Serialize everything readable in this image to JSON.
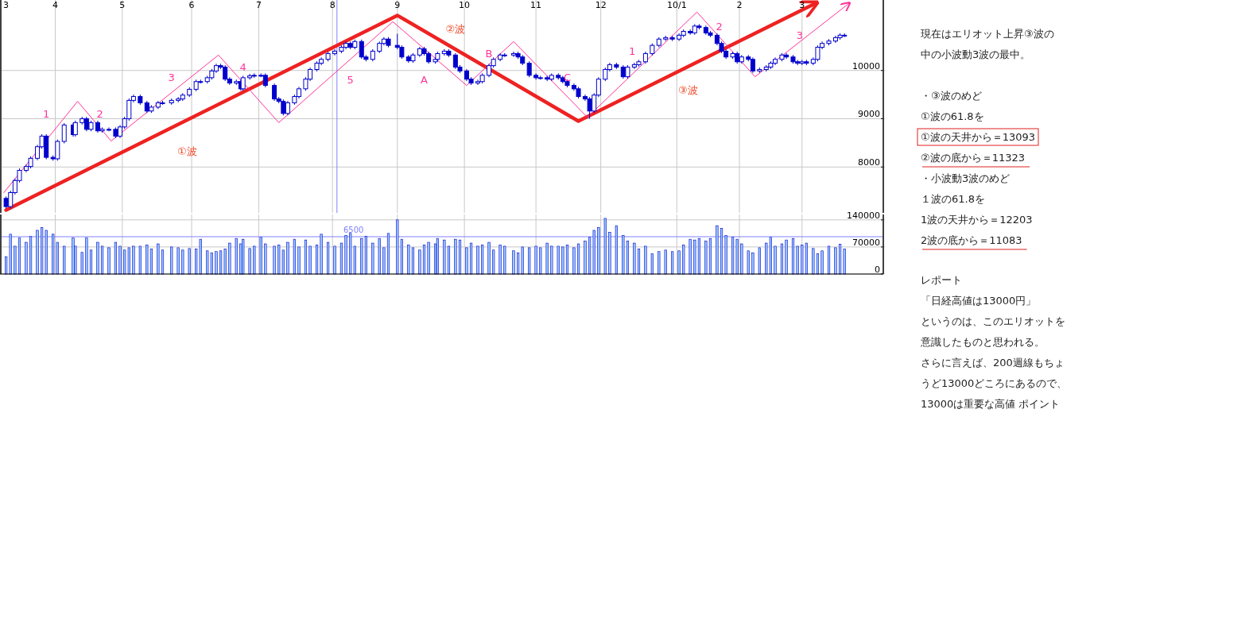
{
  "chart_data": [
    {
      "type": "candlestick",
      "color": "#0000cc",
      "x": [
        "2009-03-10",
        "2009-03-12",
        "2009-03-14",
        "2009-03-16",
        "2009-03-19",
        "2009-03-21",
        "2009-03-24",
        "2009-03-26",
        "2009-03-28",
        "2009-03-31",
        "2009-04-02",
        "2009-04-05",
        "2009-04-09",
        "2009-04-10",
        "2009-04-13",
        "2009-04-15",
        "2009-04-17",
        "2009-04-20",
        "2009-04-22",
        "2009-04-25",
        "2009-04-28",
        "2009-04-30",
        "2009-05-02",
        "2009-05-04",
        "2009-05-06",
        "2009-05-09",
        "2009-05-12",
        "2009-05-14",
        "2009-05-17",
        "2009-05-19",
        "2009-05-23",
        "2009-05-26",
        "2009-05-28",
        "2009-05-31",
        "2009-06-03",
        "2009-06-05",
        "2009-06-08",
        "2009-06-10",
        "2009-06-12",
        "2009-06-14",
        "2009-06-16",
        "2009-06-18",
        "2009-06-21",
        "2009-06-23",
        "2009-06-24",
        "2009-06-27",
        "2009-06-29",
        "2009-07-02",
        "2009-07-04",
        "2009-07-08",
        "2009-07-10",
        "2009-07-12",
        "2009-07-14",
        "2009-07-17",
        "2009-07-19",
        "2009-07-22",
        "2009-07-24",
        "2009-07-27",
        "2009-07-29",
        "2009-08-01",
        "2009-08-04",
        "2009-08-07",
        "2009-08-09",
        "2009-08-11",
        "2009-08-13",
        "2009-08-16",
        "2009-08-18",
        "2009-08-21",
        "2009-08-24",
        "2009-08-26",
        "2009-08-28",
        "2009-09-01",
        "2009-09-03",
        "2009-09-06",
        "2009-09-08",
        "2009-09-11",
        "2009-09-13",
        "2009-09-15",
        "2009-09-18",
        "2009-09-19",
        "2009-09-22",
        "2009-09-24",
        "2009-09-27",
        "2009-09-29",
        "2009-10-02",
        "2009-10-04",
        "2009-10-07",
        "2009-10-09",
        "2009-10-12",
        "2009-10-14",
        "2009-10-17",
        "2009-10-19",
        "2009-10-23",
        "2009-10-25",
        "2009-10-27",
        "2009-10-30",
        "2009-11-02",
        "2009-11-04",
        "2009-11-07",
        "2009-11-09",
        "2009-11-12",
        "2009-11-14",
        "2009-11-16",
        "2009-11-19",
        "2009-11-21",
        "2009-11-24",
        "2009-11-26",
        "2009-11-28",
        "2009-11-30",
        "2009-12-03",
        "2009-12-05",
        "2009-12-08",
        "2009-12-11",
        "2009-12-13",
        "2009-12-16",
        "2009-12-18",
        "2009-12-21",
        "2009-12-24",
        "2009-12-27",
        "2009-12-30",
        "2010-01-02",
        "2010-01-05",
        "2010-01-07",
        "2010-01-10",
        "2010-01-12",
        "2010-01-14",
        "2010-01-17",
        "2010-01-19",
        "2010-01-22",
        "2010-01-24",
        "2010-01-26",
        "2010-01-29",
        "2010-01-31",
        "2010-02-02",
        "2010-02-05",
        "2010-02-07",
        "2010-02-10",
        "2010-02-13",
        "2010-02-15",
        "2010-02-17",
        "2010-02-20",
        "2010-02-22",
        "2010-02-25",
        "2010-02-27",
        "2010-03-01",
        "2010-03-03",
        "2010-03-06",
        "2010-03-08",
        "2010-03-10",
        "2010-03-13",
        "2010-03-16",
        "2010-03-18",
        "2010-03-20"
      ],
      "ohlc": [
        [
          7350,
          7390,
          7140,
          7180
        ],
        [
          7180,
          7510,
          7140,
          7470
        ],
        [
          7470,
          7760,
          7430,
          7720
        ],
        [
          7720,
          7970,
          7680,
          7930
        ],
        [
          7930,
          8050,
          7890,
          8010
        ],
        [
          8010,
          8220,
          7970,
          8180
        ],
        [
          8180,
          8460,
          8140,
          8420
        ],
        [
          8420,
          8680,
          8380,
          8640
        ],
        [
          8640,
          8680,
          8160,
          8200
        ],
        [
          8200,
          8240,
          8130,
          8170
        ],
        [
          8170,
          8570,
          8130,
          8530
        ],
        [
          8530,
          8910,
          8490,
          8870
        ],
        [
          8870,
          8910,
          8630,
          8670
        ],
        [
          8670,
          8960,
          8630,
          8920
        ],
        [
          8920,
          9040,
          8880,
          9000
        ],
        [
          9000,
          9040,
          8740,
          8780
        ],
        [
          8780,
          8960,
          8740,
          8920
        ],
        [
          8920,
          8960,
          8710,
          8750
        ],
        [
          8750,
          8820,
          8710,
          8780
        ],
        [
          8780,
          8820,
          8740,
          8780
        ],
        [
          8780,
          8820,
          8600,
          8640
        ],
        [
          8640,
          8870,
          8600,
          8830
        ],
        [
          8830,
          9040,
          8790,
          9000
        ],
        [
          9000,
          9420,
          8960,
          9380
        ],
        [
          9380,
          9500,
          9340,
          9460
        ],
        [
          9460,
          9500,
          9290,
          9330
        ],
        [
          9330,
          9370,
          9120,
          9160
        ],
        [
          9160,
          9280,
          9120,
          9240
        ],
        [
          9240,
          9370,
          9200,
          9330
        ],
        [
          9330,
          9370,
          9290,
          9330
        ],
        [
          9330,
          9420,
          9290,
          9380
        ],
        [
          9380,
          9450,
          9340,
          9410
        ],
        [
          9410,
          9530,
          9370,
          9490
        ],
        [
          9490,
          9650,
          9450,
          9610
        ],
        [
          9610,
          9810,
          9570,
          9770
        ],
        [
          9770,
          9810,
          9730,
          9770
        ],
        [
          9770,
          9890,
          9730,
          9850
        ],
        [
          9850,
          10030,
          9810,
          9990
        ],
        [
          9990,
          10140,
          9950,
          10100
        ],
        [
          10100,
          10140,
          10030,
          10070
        ],
        [
          10070,
          10110,
          9780,
          9820
        ],
        [
          9820,
          9860,
          9700,
          9740
        ],
        [
          9740,
          9810,
          9700,
          9770
        ],
        [
          9770,
          9810,
          9580,
          9620
        ],
        [
          9620,
          9890,
          9580,
          9850
        ],
        [
          9850,
          9930,
          9810,
          9890
        ],
        [
          9890,
          9940,
          9850,
          9900
        ],
        [
          9900,
          9940,
          9860,
          9900
        ],
        [
          9900,
          9940,
          9650,
          9690
        ],
        [
          9690,
          9730,
          9370,
          9410
        ],
        [
          9410,
          9450,
          9320,
          9360
        ],
        [
          9360,
          9400,
          9070,
          9110
        ],
        [
          9110,
          9370,
          9070,
          9330
        ],
        [
          9330,
          9500,
          9290,
          9460
        ],
        [
          9460,
          9660,
          9420,
          9620
        ],
        [
          9620,
          9860,
          9580,
          9820
        ],
        [
          9820,
          10060,
          9780,
          10020
        ],
        [
          10020,
          10190,
          9980,
          10150
        ],
        [
          10150,
          10270,
          10110,
          10230
        ],
        [
          10230,
          10390,
          10190,
          10350
        ],
        [
          10350,
          10440,
          10310,
          10400
        ],
        [
          10400,
          10520,
          10360,
          10480
        ],
        [
          10480,
          10600,
          10440,
          10560
        ],
        [
          10560,
          10600,
          10440,
          10480
        ],
        [
          10480,
          10640,
          10440,
          10600
        ],
        [
          10600,
          10640,
          10240,
          10280
        ],
        [
          10280,
          10320,
          10190,
          10230
        ],
        [
          10230,
          10440,
          10190,
          10400
        ],
        [
          10400,
          10600,
          10360,
          10560
        ],
        [
          10560,
          10690,
          10520,
          10650
        ],
        [
          10650,
          10690,
          10480,
          10520
        ],
        [
          10520,
          10760,
          10440,
          10480
        ],
        [
          10480,
          10520,
          10240,
          10280
        ],
        [
          10280,
          10320,
          10160,
          10200
        ],
        [
          10200,
          10360,
          10160,
          10320
        ],
        [
          10320,
          10490,
          10280,
          10450
        ],
        [
          10450,
          10490,
          10310,
          10350
        ],
        [
          10350,
          10390,
          10140,
          10180
        ],
        [
          10180,
          10270,
          10140,
          10230
        ],
        [
          10230,
          10390,
          10190,
          10350
        ],
        [
          10350,
          10440,
          10310,
          10400
        ],
        [
          10400,
          10440,
          10280,
          10320
        ],
        [
          10320,
          10360,
          10030,
          10070
        ],
        [
          10070,
          10110,
          9950,
          9990
        ],
        [
          9990,
          10030,
          9780,
          9820
        ],
        [
          9820,
          9860,
          9700,
          9740
        ],
        [
          9740,
          9810,
          9700,
          9770
        ],
        [
          9770,
          9940,
          9730,
          9900
        ],
        [
          9900,
          10140,
          9860,
          10100
        ],
        [
          10100,
          10270,
          10060,
          10230
        ],
        [
          10230,
          10360,
          10190,
          10320
        ],
        [
          10320,
          10360,
          10280,
          10320
        ],
        [
          10320,
          10390,
          10280,
          10350
        ],
        [
          10350,
          10390,
          10240,
          10280
        ],
        [
          10280,
          10320,
          10110,
          10150
        ],
        [
          10150,
          10190,
          9860,
          9900
        ],
        [
          9900,
          9940,
          9810,
          9850
        ],
        [
          9850,
          9890,
          9810,
          9850
        ],
        [
          9850,
          9890,
          9780,
          9820
        ],
        [
          9820,
          9940,
          9780,
          9900
        ],
        [
          9900,
          9940,
          9810,
          9850
        ],
        [
          9850,
          9890,
          9730,
          9770
        ],
        [
          9770,
          9810,
          9650,
          9690
        ],
        [
          9690,
          9730,
          9580,
          9620
        ],
        [
          9620,
          9660,
          9420,
          9460
        ],
        [
          9460,
          9500,
          9370,
          9410
        ],
        [
          9410,
          9450,
          9000,
          9160
        ],
        [
          9160,
          9530,
          9120,
          9490
        ],
        [
          9490,
          9860,
          9450,
          9820
        ],
        [
          9820,
          10060,
          9780,
          10020
        ],
        [
          10020,
          10160,
          9980,
          10120
        ],
        [
          10120,
          10160,
          10030,
          10070
        ],
        [
          10070,
          10110,
          9830,
          9870
        ],
        [
          9870,
          10110,
          9830,
          10070
        ],
        [
          10070,
          10160,
          10030,
          10120
        ],
        [
          10120,
          10220,
          10080,
          10180
        ],
        [
          10180,
          10390,
          10140,
          10350
        ],
        [
          10350,
          10560,
          10310,
          10520
        ],
        [
          10520,
          10690,
          10480,
          10650
        ],
        [
          10650,
          10720,
          10610,
          10680
        ],
        [
          10680,
          10720,
          10610,
          10650
        ],
        [
          10650,
          10770,
          10610,
          10730
        ],
        [
          10730,
          10850,
          10690,
          10810
        ],
        [
          10810,
          10850,
          10740,
          10780
        ],
        [
          10780,
          10960,
          10740,
          10920
        ],
        [
          10920,
          10960,
          10850,
          10890
        ],
        [
          10890,
          10930,
          10740,
          10780
        ],
        [
          10780,
          10820,
          10690,
          10730
        ],
        [
          10730,
          10770,
          10520,
          10560
        ],
        [
          10560,
          10600,
          10360,
          10400
        ],
        [
          10400,
          10440,
          10240,
          10280
        ],
        [
          10280,
          10390,
          10240,
          10350
        ],
        [
          10350,
          10390,
          10140,
          10180
        ],
        [
          10180,
          10320,
          10140,
          10280
        ],
        [
          10280,
          10320,
          10190,
          10230
        ],
        [
          10230,
          10270,
          9950,
          9990
        ],
        [
          9990,
          10060,
          9950,
          10020
        ],
        [
          10020,
          10110,
          9980,
          10070
        ],
        [
          10070,
          10190,
          10030,
          10150
        ],
        [
          10150,
          10270,
          10110,
          10230
        ],
        [
          10230,
          10360,
          10190,
          10320
        ],
        [
          10320,
          10360,
          10240,
          10280
        ],
        [
          10280,
          10320,
          10140,
          10180
        ],
        [
          10180,
          10220,
          10110,
          10150
        ],
        [
          10150,
          10220,
          10110,
          10180
        ],
        [
          10180,
          10220,
          10110,
          10150
        ],
        [
          10150,
          10270,
          10110,
          10230
        ],
        [
          10230,
          10520,
          10190,
          10480
        ],
        [
          10480,
          10600,
          10440,
          10560
        ],
        [
          10560,
          10650,
          10520,
          10610
        ],
        [
          10610,
          10720,
          10570,
          10680
        ],
        [
          10680,
          10770,
          10640,
          10730
        ],
        [
          10730,
          10770,
          10690,
          10730
        ]
      ],
      "series": [
        {
          "type": "line",
          "color": "#ee2222",
          "x": [
            "2009-03-10",
            "2009-09-01",
            "2009-11-21",
            "2010-03-07"
          ],
          "values": [
            7110,
            11140,
            8950,
            11390
          ]
        },
        {
          "type": "line",
          "color": "#ff3399",
          "x": [
            "2009-03-09",
            "2009-04-11",
            "2009-04-26",
            "2009-06-13",
            "2009-07-10",
            "2009-08-30",
            "2009-10-02",
            "2009-10-23",
            "2009-11-25",
            "2010-01-13",
            "2010-02-08",
            "2010-03-22"
          ],
          "values": [
            7470,
            9360,
            8540,
            10320,
            8920,
            11010,
            9690,
            10600,
            9030,
            11210,
            9870,
            11390
          ]
        }
      ],
      "xlim": [
        "2009-03-08",
        "2010-04-06"
      ],
      "xticks": [
        {
          "value": "2009-03-10",
          "label": "3"
        },
        {
          "value": "2009-04-01",
          "label": "4"
        },
        {
          "value": "2009-05-01",
          "label": "5"
        },
        {
          "value": "2009-06-01",
          "label": "6"
        },
        {
          "value": "2009-07-01",
          "label": "7"
        },
        {
          "value": "2009-08-03",
          "label": "8"
        },
        {
          "value": "2009-09-01",
          "label": "9"
        },
        {
          "value": "2009-10-01",
          "label": "10"
        },
        {
          "value": "2009-11-02",
          "label": "11"
        },
        {
          "value": "2009-12-01",
          "label": "12"
        },
        {
          "value": "2010-01-04",
          "label": "10/1"
        },
        {
          "value": "2010-02-01",
          "label": "2"
        },
        {
          "value": "2010-03-01",
          "label": "3"
        }
      ],
      "ylim": [
        7050,
        11460
      ],
      "yticks": [
        8000,
        9000,
        10000
      ],
      "grid": true,
      "ref_lines": [
        {
          "axis": "x",
          "value": "2009-08-05",
          "color": "#8080ff"
        }
      ],
      "annotations": [
        "1",
        "2",
        "3",
        "4",
        "5",
        "A",
        "B",
        "C",
        "1",
        "2",
        "3",
        "①波",
        "②波",
        "③波",
        "現在はエリオット上昇③波の",
        "中の小波動3波の最中。",
        "・③波のめど",
        "①波の61.8を",
        "①波の天井から＝13093",
        "②波の底から＝11323",
        "・小波動3波のめど",
        "１波の61.8を",
        "1波の天井から＝12203",
        "2波の底から＝11083",
        "レポート",
        "「日経高値は13000円」",
        "というのは、このエリオットを",
        "意識したものと思われる。",
        "さらに言えば、200週線もちょ",
        "うど13000どころにあるので、",
        "13000は重要な高値 ポイント"
      ]
    },
    {
      "type": "bar",
      "color": "#99ccff",
      "x": [
        "2009-03-10",
        "2009-03-12",
        "2009-03-14",
        "2009-03-16",
        "2009-03-19",
        "2009-03-21",
        "2009-03-24",
        "2009-03-26",
        "2009-03-28",
        "2009-03-31",
        "2009-04-02",
        "2009-04-05",
        "2009-04-09",
        "2009-04-10",
        "2009-04-13",
        "2009-04-15",
        "2009-04-17",
        "2009-04-20",
        "2009-04-22",
        "2009-04-25",
        "2009-04-28",
        "2009-04-30",
        "2009-05-02",
        "2009-05-04",
        "2009-05-06",
        "2009-05-09",
        "2009-05-12",
        "2009-05-14",
        "2009-05-17",
        "2009-05-19",
        "2009-05-23",
        "2009-05-26",
        "2009-05-28",
        "2009-05-31",
        "2009-06-03",
        "2009-06-05",
        "2009-06-08",
        "2009-06-10",
        "2009-06-12",
        "2009-06-14",
        "2009-06-16",
        "2009-06-18",
        "2009-06-21",
        "2009-06-23",
        "2009-06-24",
        "2009-06-27",
        "2009-06-29",
        "2009-07-02",
        "2009-07-04",
        "2009-07-08",
        "2009-07-10",
        "2009-07-12",
        "2009-07-14",
        "2009-07-17",
        "2009-07-19",
        "2009-07-22",
        "2009-07-24",
        "2009-07-27",
        "2009-07-29",
        "2009-08-01",
        "2009-08-04",
        "2009-08-07",
        "2009-08-09",
        "2009-08-11",
        "2009-08-13",
        "2009-08-16",
        "2009-08-18",
        "2009-08-21",
        "2009-08-24",
        "2009-08-26",
        "2009-08-28",
        "2009-09-01",
        "2009-09-03",
        "2009-09-06",
        "2009-09-08",
        "2009-09-11",
        "2009-09-13",
        "2009-09-15",
        "2009-09-18",
        "2009-09-19",
        "2009-09-22",
        "2009-09-24",
        "2009-09-27",
        "2009-09-29",
        "2009-10-02",
        "2009-10-04",
        "2009-10-07",
        "2009-10-09",
        "2009-10-12",
        "2009-10-14",
        "2009-10-17",
        "2009-10-19",
        "2009-10-23",
        "2009-10-25",
        "2009-10-27",
        "2009-10-30",
        "2009-11-02",
        "2009-11-04",
        "2009-11-07",
        "2009-11-09",
        "2009-11-12",
        "2009-11-14",
        "2009-11-16",
        "2009-11-19",
        "2009-11-21",
        "2009-11-24",
        "2009-11-26",
        "2009-11-28",
        "2009-11-30",
        "2009-12-03",
        "2009-12-05",
        "2009-12-08",
        "2009-12-11",
        "2009-12-13",
        "2009-12-16",
        "2009-12-18",
        "2009-12-21",
        "2009-12-24",
        "2009-12-27",
        "2009-12-30",
        "2010-01-02",
        "2010-01-05",
        "2010-01-07",
        "2010-01-10",
        "2010-01-12",
        "2010-01-14",
        "2010-01-17",
        "2010-01-19",
        "2010-01-22",
        "2010-01-24",
        "2010-01-26",
        "2010-01-29",
        "2010-01-31",
        "2010-02-02",
        "2010-02-05",
        "2010-02-07",
        "2010-02-10",
        "2010-02-13",
        "2010-02-15",
        "2010-02-17",
        "2010-02-20",
        "2010-02-22",
        "2010-02-25",
        "2010-02-27",
        "2010-03-01",
        "2010-03-03",
        "2010-03-06",
        "2010-03-08",
        "2010-03-10",
        "2010-03-13",
        "2010-03-16",
        "2010-03-18",
        "2010-03-20"
      ],
      "xticks": [
        {
          "value": "2009-03-10",
          "label": null
        },
        {
          "value": "2009-04-01",
          "label": null
        },
        {
          "value": "2009-05-01",
          "label": null
        },
        {
          "value": "2009-06-01",
          "label": null
        },
        {
          "value": "2009-07-01",
          "label": null
        },
        {
          "value": "2009-08-03",
          "label": null
        },
        {
          "value": "2009-09-01",
          "label": null
        },
        {
          "value": "2009-10-01",
          "label": null
        },
        {
          "value": "2009-11-02",
          "label": null
        },
        {
          "value": "2009-12-01",
          "label": null
        },
        {
          "value": "2010-01-04",
          "label": null
        },
        {
          "value": "2010-02-01",
          "label": null
        },
        {
          "value": "2010-03-01",
          "label": null
        }
      ],
      "values": [
        45000,
        103000,
        72000,
        93000,
        82000,
        97000,
        113000,
        120000,
        113000,
        103000,
        82000,
        72000,
        93000,
        72000,
        56000,
        93000,
        62000,
        82000,
        72000,
        68000,
        82000,
        72000,
        62000,
        68000,
        72000,
        72000,
        75000,
        65000,
        78000,
        62000,
        70000,
        68000,
        62000,
        66000,
        65000,
        90000,
        60000,
        55000,
        58000,
        60000,
        65000,
        80000,
        92000,
        78000,
        90000,
        66000,
        72000,
        95000,
        78000,
        72000,
        75000,
        62000,
        82000,
        90000,
        70000,
        88000,
        72000,
        75000,
        103000,
        82000,
        72000,
        80000,
        100000,
        105000,
        72000,
        92000,
        98000,
        80000,
        92000,
        68000,
        105000,
        140000,
        90000,
        75000,
        68000,
        62000,
        75000,
        82000,
        78000,
        92000,
        88000,
        72000,
        90000,
        88000,
        68000,
        80000,
        72000,
        75000,
        82000,
        62000,
        75000,
        72000,
        60000,
        55000,
        70000,
        68000,
        72000,
        68000,
        80000,
        72000,
        72000,
        70000,
        75000,
        68000,
        78000,
        85000,
        95000,
        113000,
        120000,
        144000,
        108000,
        125000,
        100000,
        85000,
        80000,
        65000,
        72000,
        52000,
        58000,
        62000,
        58000,
        60000,
        75000,
        90000,
        88000,
        92000,
        85000,
        92000,
        125000,
        118000,
        100000,
        95000,
        90000,
        78000,
        60000,
        55000,
        68000,
        80000,
        95000,
        72000,
        78000,
        88000,
        92000,
        72000,
        75000,
        80000,
        66000,
        52000,
        60000,
        72000,
        68000,
        77000,
        65000
      ],
      "xlim": [
        "2009-03-08",
        "2010-04-06"
      ],
      "ylim": [
        0,
        154000
      ],
      "yticks": [
        0,
        70000,
        140000
      ],
      "grid": true,
      "tick_labels": "y",
      "ref_lines": [
        {
          "axis": "y",
          "value": 96500,
          "color": "#8080ff"
        }
      ],
      "annotations": [
        "6500"
      ]
    }
  ]
}
